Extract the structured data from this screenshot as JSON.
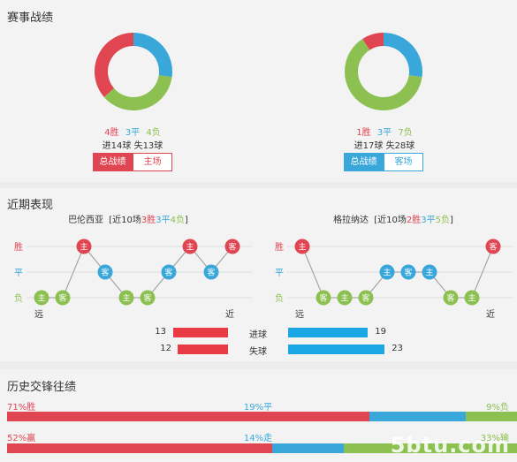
{
  "colors": {
    "win": "#e04552",
    "draw": "#3aa7db",
    "loss": "#8cc152",
    "home_bar": "#e83a45",
    "away_bar": "#1aa7e3"
  },
  "stats": {
    "title": "赛事战绩",
    "left": {
      "win": "4胜",
      "draw": "3平",
      "loss": "4负",
      "goals": "进14球 失13球",
      "tab_active": "总战绩",
      "tab_other": "主场",
      "chart": {
        "win": 4,
        "draw": 3,
        "loss": 4
      }
    },
    "right": {
      "win": "1胜",
      "draw": "3平",
      "loss": "7负",
      "goals": "进17球 失28球",
      "tab_active": "总战绩",
      "tab_other": "客场",
      "chart": {
        "win": 1,
        "draw": 3,
        "loss": 7
      }
    }
  },
  "recent": {
    "title": "近期表现",
    "y_labels": [
      "胜",
      "平",
      "负"
    ],
    "far": "远",
    "near": "近",
    "left": {
      "team": "巴伦西亚",
      "pre": "[近10场",
      "w": "3胜",
      "d": "3平",
      "l": "4负",
      "post": "]",
      "results": [
        "L",
        "L",
        "W",
        "D",
        "L",
        "L",
        "D",
        "W",
        "D",
        "W"
      ],
      "venues": [
        "主",
        "客",
        "主",
        "客",
        "主",
        "客",
        "客",
        "主",
        "客",
        "客"
      ]
    },
    "right": {
      "team": "格拉纳达",
      "pre": "[近10场",
      "w": "2胜",
      "d": "3平",
      "l": "5负",
      "post": "]",
      "results": [
        "W",
        "L",
        "L",
        "L",
        "D",
        "D",
        "D",
        "L",
        "L",
        "W"
      ],
      "venues": [
        "主",
        "客",
        "主",
        "客",
        "主",
        "客",
        "主",
        "客",
        "主",
        "客"
      ]
    },
    "goals_for_label": "进球",
    "goals_against_label": "失球",
    "left_goals_for": 13,
    "left_goals_against": 12,
    "right_goals_for": 19,
    "right_goals_against": 23
  },
  "history": {
    "title": "历史交锋往绩",
    "row1": {
      "win": "71%胜",
      "draw": "19%平",
      "loss": "9%负",
      "win_pct": 71,
      "draw_pct": 19,
      "loss_pct": 9
    },
    "row2": {
      "win": "52%赢",
      "draw": "14%走",
      "loss": "33%输",
      "win_pct": 52,
      "draw_pct": 14,
      "loss_pct": 33
    },
    "watermark": "5btu.com"
  }
}
